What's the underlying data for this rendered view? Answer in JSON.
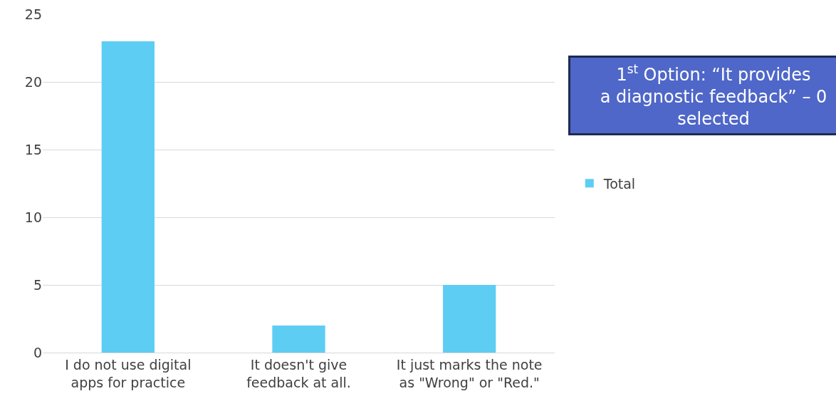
{
  "chart_data": {
    "type": "bar",
    "categories": [
      "I do not use digital apps for practice",
      "It doesn't give feedback at all.",
      "It just marks the note as \"Wrong\" or \"Red.\""
    ],
    "series": [
      {
        "name": "Total",
        "color": "#5ecdf3",
        "values": [
          23,
          2,
          5
        ]
      }
    ],
    "ylim": [
      0,
      25
    ],
    "yticks": [
      0,
      5,
      10,
      15,
      20,
      25
    ],
    "grid": "y",
    "legend": "right",
    "annotations": [
      "1$^{st}$ Option: “It provides a diagnostic feedback” – 0 selected"
    ]
  }
}
